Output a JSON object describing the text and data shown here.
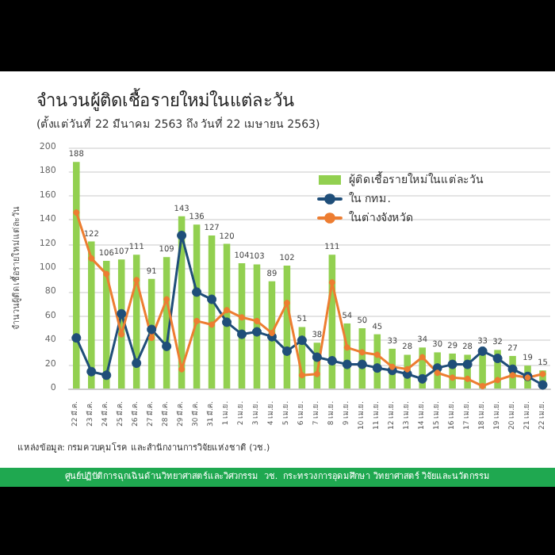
{
  "chart_data": {
    "type": "bar",
    "title": "จำนวนผู้ติดเชื้อรายใหม่ในแต่ละวัน",
    "subtitle": "(ตั้งแต่วันที่ 22 มีนาคม 2563 ถึง วันที่ 22 เมษายน 2563)",
    "ylabel": "จำนวนผู้ติดเชื้อรายใหม่แต่ละวัน",
    "annotations": [
      "แหล่งข้อมูล: กรมควบคุมโรค และสำนักงานการวิจัยแห่งชาติ (วช.)",
      "ศูนย์ปฏิบัติการฉุกเฉินด้านวิทยาศาสตร์และวิศวกรรม  วช.  กระทรวงการอุดมศึกษา วิทยาศาสตร์ วิจัยและนวัตกรรม"
    ],
    "categories": [
      "22 มี.ค.",
      "23 มี.ค.",
      "24 มี.ค.",
      "25 มี.ค.",
      "26 มี.ค.",
      "27 มี.ค.",
      "28 มี.ค.",
      "29 มี.ค.",
      "30 มี.ค.",
      "31 มี.ค.",
      "1 เม.ย.",
      "2 เม.ย.",
      "3 เม.ย.",
      "4 เม.ย.",
      "5 เม.ย.",
      "6 เม.ย.",
      "7 เม.ย.",
      "8 เม.ย.",
      "9 เม.ย.",
      "10 เม.ย.",
      "11 เม.ย.",
      "12 เม.ย.",
      "13 เม.ย.",
      "14 เม.ย.",
      "15 เม.ย.",
      "16 เม.ย.",
      "17 เม.ย.",
      "18 เม.ย.",
      "19 เม.ย.",
      "20 เม.ย.",
      "21 เม.ย.",
      "22 เม.ย."
    ],
    "series": [
      {
        "name": "ผู้ติดเชื้อรายใหม่ในแต่ละวัน",
        "color": "#92d050",
        "values": [
          188,
          122,
          106,
          107,
          111,
          91,
          109,
          143,
          136,
          127,
          120,
          104,
          103,
          89,
          102,
          51,
          38,
          111,
          54,
          50,
          45,
          33,
          28,
          34,
          30,
          29,
          28,
          33,
          32,
          27,
          19,
          15
        ],
        "value_labels": [
          "188",
          "122",
          "106",
          "107",
          "111",
          "91",
          "109",
          "143",
          "136",
          "127",
          "120",
          "104",
          "103",
          "89",
          "102",
          "51",
          "38",
          "111",
          "54",
          "50",
          "45",
          "33",
          "28",
          "34",
          "30",
          "29",
          "28",
          "33",
          "32",
          "27",
          "19",
          "15"
        ]
      },
      {
        "name": "ใน กทม.",
        "type": "line",
        "color": "#1f4e79",
        "values": [
          42,
          14,
          11,
          62,
          21,
          49,
          35,
          127,
          80,
          74,
          55,
          45,
          47,
          43,
          31,
          40,
          26,
          23,
          20,
          20,
          17,
          15,
          12,
          8,
          17,
          20,
          20,
          31,
          25,
          16,
          10,
          3
        ]
      },
      {
        "name": "ในต่างจังหวัด",
        "type": "line",
        "color": "#ed7d31",
        "values": [
          146,
          108,
          95,
          45,
          90,
          42,
          74,
          16,
          56,
          53,
          65,
          59,
          56,
          46,
          71,
          11,
          12,
          88,
          34,
          30,
          28,
          18,
          16,
          26,
          13,
          9,
          8,
          2,
          7,
          11,
          9,
          12
        ]
      }
    ],
    "ylim": [
      0,
      200
    ],
    "yticks": [
      0,
      20,
      40,
      60,
      80,
      100,
      120,
      140,
      160,
      180,
      200
    ],
    "grid": "y",
    "legend": "top right",
    "marker": "circle",
    "line_style": "solid"
  }
}
